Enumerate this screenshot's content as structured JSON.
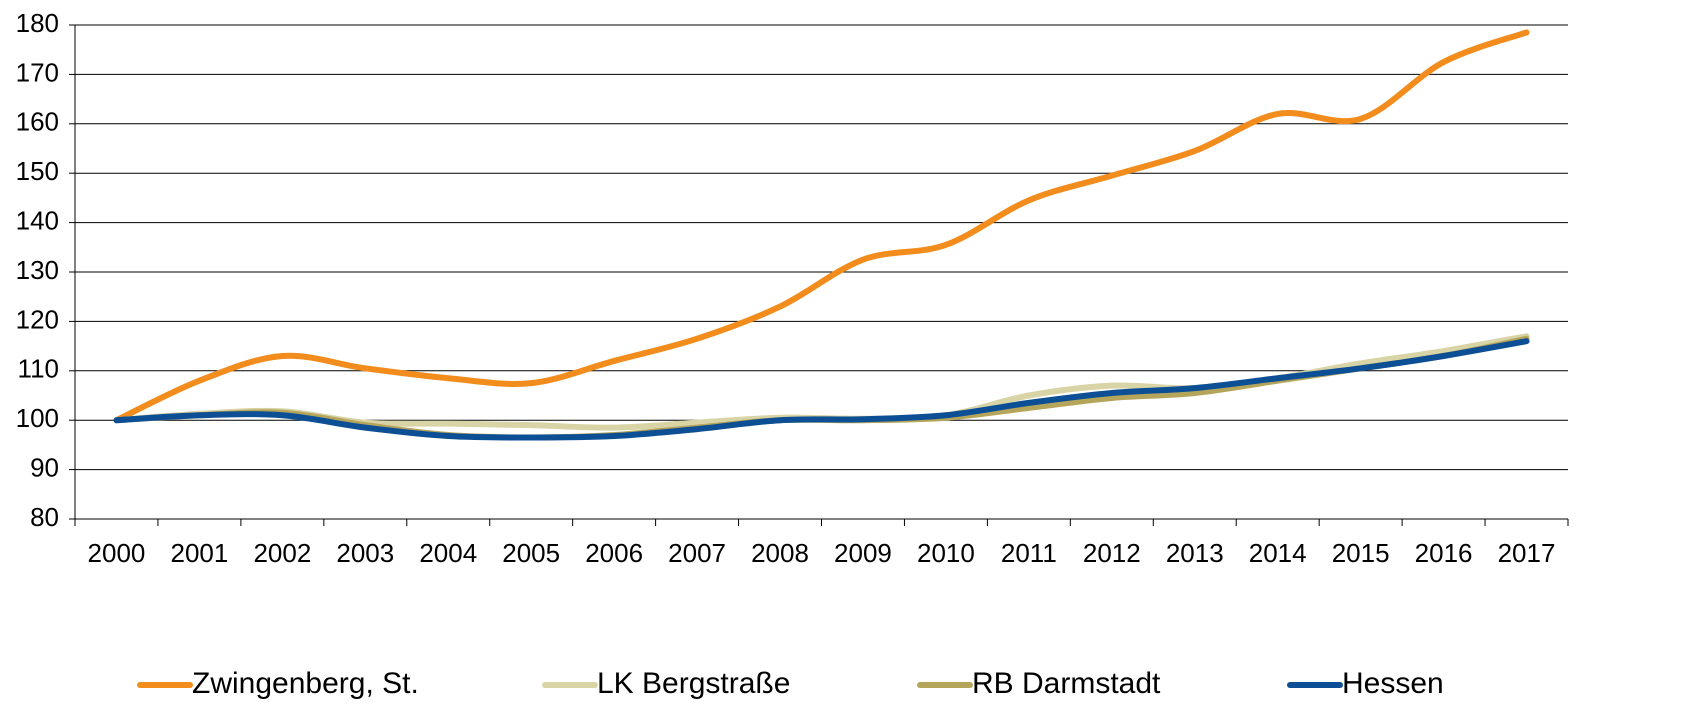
{
  "chart_data": {
    "type": "line",
    "categories": [
      "2000",
      "2001",
      "2002",
      "2003",
      "2004",
      "2005",
      "2006",
      "2007",
      "2008",
      "2009",
      "2010",
      "2011",
      "2012",
      "2013",
      "2014",
      "2015",
      "2016",
      "2017"
    ],
    "series": [
      {
        "name": "Zwingenberg, St.",
        "color": "#f28c1c",
        "values": [
          100,
          108,
          113,
          110.5,
          108.5,
          107.5,
          112,
          116.5,
          123,
          132.5,
          135.5,
          144.5,
          149.5,
          154.5,
          162,
          161,
          172.5,
          178.5
        ]
      },
      {
        "name": "LK Bergstraße",
        "color": "#d9d4a6",
        "values": [
          100,
          101.3,
          101.8,
          99.5,
          99.3,
          99,
          98.5,
          99.5,
          100.5,
          100.3,
          101,
          105,
          107,
          106.5,
          108.5,
          111.5,
          114,
          117
        ]
      },
      {
        "name": "RB Darmstadt",
        "color": "#b5a55a",
        "values": [
          100,
          101,
          101.5,
          99,
          97,
          96.5,
          97,
          98.5,
          100,
          100,
          100.5,
          102.5,
          104.5,
          105.5,
          108,
          110.5,
          113,
          116.5
        ]
      },
      {
        "name": "Hessen",
        "color": "#0d4f94",
        "values": [
          100,
          101,
          101,
          98.5,
          96.8,
          96.5,
          96.8,
          98.2,
          100,
          100.2,
          101,
          103.5,
          105.5,
          106.5,
          108.5,
          110.5,
          113,
          116
        ]
      }
    ],
    "ylim": [
      80,
      180
    ],
    "yticks": [
      80,
      90,
      100,
      110,
      120,
      130,
      140,
      150,
      160,
      170,
      180
    ],
    "grid": true,
    "legend": "bottom"
  }
}
